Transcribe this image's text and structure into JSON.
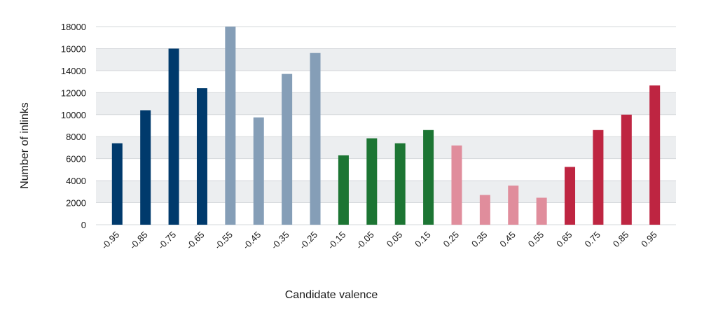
{
  "chart_data": {
    "type": "bar",
    "title": "",
    "xlabel": "Candidate valence",
    "ylabel": "Number of inlinks",
    "ylim": [
      0,
      18000
    ],
    "yticks": [
      0,
      2000,
      4000,
      6000,
      8000,
      10000,
      12000,
      14000,
      16000,
      18000
    ],
    "grid": "horizontal bands",
    "categories": [
      "-0.95",
      "-0.85",
      "-0.75",
      "-0.65",
      "-0.55",
      "-0.45",
      "-0.35",
      "-0.25",
      "-0.15",
      "-0.05",
      "0.05",
      "0.15",
      "0.25",
      "0.35",
      "0.45",
      "0.55",
      "0.65",
      "0.75",
      "0.85",
      "0.95"
    ],
    "values": [
      7400,
      10400,
      16000,
      12400,
      18000,
      9750,
      13700,
      15600,
      6300,
      7850,
      7400,
      8600,
      7200,
      2700,
      3550,
      2450,
      5250,
      8600,
      10000,
      12650
    ],
    "bar_colors": [
      "#003a6c",
      "#003a6c",
      "#003a6c",
      "#003a6c",
      "#859eb7",
      "#859eb7",
      "#859eb7",
      "#859eb7",
      "#1c7533",
      "#1c7533",
      "#1c7533",
      "#1c7533",
      "#e08d9c",
      "#e08d9c",
      "#e08d9c",
      "#e08d9c",
      "#be2541",
      "#be2541",
      "#be2541",
      "#be2541"
    ],
    "band_color": "#eceef0",
    "grid_line_color": "#d5d8db"
  }
}
